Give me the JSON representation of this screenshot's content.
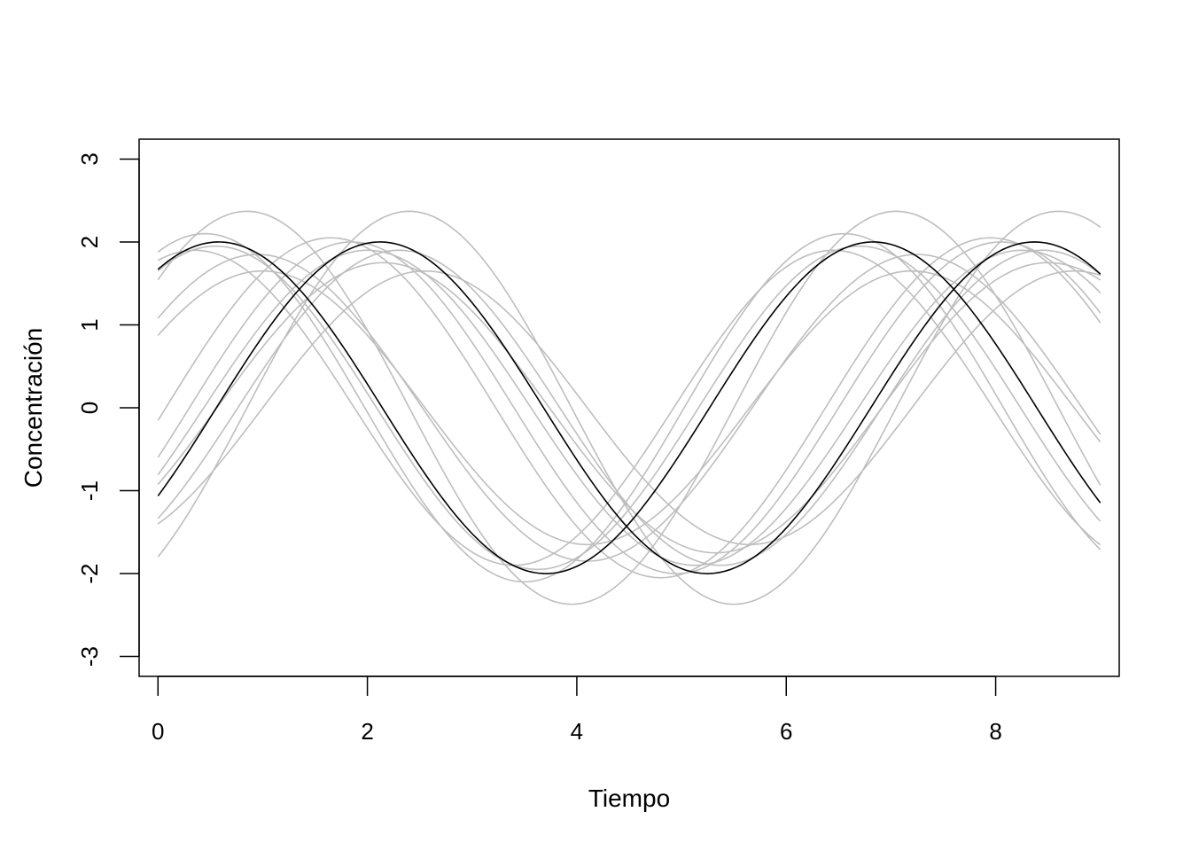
{
  "chart_data": {
    "type": "line",
    "title": "",
    "xlabel": "Tiempo",
    "ylabel": "Concentración",
    "xlim": [
      -0.18,
      9.18
    ],
    "ylim": [
      -3.24,
      3.24
    ],
    "x_ticks": [
      0,
      2,
      4,
      6,
      8
    ],
    "x_tick_labels": [
      "0",
      "2",
      "4",
      "6",
      "8"
    ],
    "y_ticks": [
      -3,
      -2,
      -1,
      0,
      1,
      2,
      3
    ],
    "y_tick_labels": [
      "-3",
      "-2",
      "-1",
      "0",
      "1",
      "2",
      "3"
    ],
    "grid": false,
    "legend": "none",
    "x_range": [
      0,
      9
    ],
    "colors": {
      "highlight": "#000000",
      "background": "#bebebe",
      "frame": "#000000"
    },
    "series": [
      {
        "color": "#bebebe",
        "amplitude": 2.37,
        "period": 6.2,
        "phase": 0.85
      },
      {
        "color": "#bebebe",
        "amplitude": 2.37,
        "period": 6.2,
        "phase": 2.4
      },
      {
        "color": "#bebebe",
        "amplitude": 1.65,
        "period": 6.2,
        "phase": 1.0
      },
      {
        "color": "#bebebe",
        "amplitude": 1.65,
        "period": 6.2,
        "phase": 2.55
      },
      {
        "color": "#bebebe",
        "amplitude": 1.9,
        "period": 6.1,
        "phase": 0.35
      },
      {
        "color": "#bebebe",
        "amplitude": 1.95,
        "period": 6.15,
        "phase": 0.55
      },
      {
        "color": "#bebebe",
        "amplitude": 1.85,
        "period": 6.3,
        "phase": 0.95
      },
      {
        "color": "#bebebe",
        "amplitude": 2.1,
        "period": 6.1,
        "phase": 0.45
      },
      {
        "color": "#bebebe",
        "amplitude": 1.9,
        "period": 6.25,
        "phase": 2.0
      },
      {
        "color": "#bebebe",
        "amplitude": 1.75,
        "period": 6.35,
        "phase": 2.15
      },
      {
        "color": "#bebebe",
        "amplitude": 2.0,
        "period": 6.2,
        "phase": 1.85
      },
      {
        "color": "#bebebe",
        "amplitude": 1.9,
        "period": 6.15,
        "phase": 2.3
      },
      {
        "color": "#bebebe",
        "amplitude": 2.05,
        "period": 6.3,
        "phase": 1.65
      },
      {
        "color": "#000000",
        "amplitude": 2.0,
        "period": 6.25,
        "phase": 0.58
      },
      {
        "color": "#000000",
        "amplitude": 2.0,
        "period": 6.25,
        "phase": 2.12
      }
    ]
  }
}
